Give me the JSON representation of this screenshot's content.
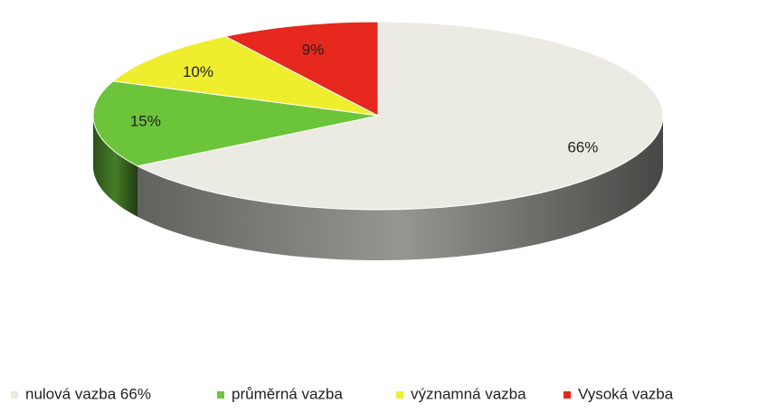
{
  "chart_data": {
    "type": "pie",
    "categories": [
      "nulová vazba 66%",
      "průměrná vazba",
      "významná vazba",
      "Vysoká vazba"
    ],
    "values": [
      66,
      15,
      10,
      9
    ],
    "value_labels": [
      "66%",
      "15%",
      "10%",
      "9%"
    ],
    "colors": [
      "#ecebe3",
      "#6cc43a",
      "#efee2e",
      "#e6281e"
    ],
    "legend": "bottom"
  }
}
